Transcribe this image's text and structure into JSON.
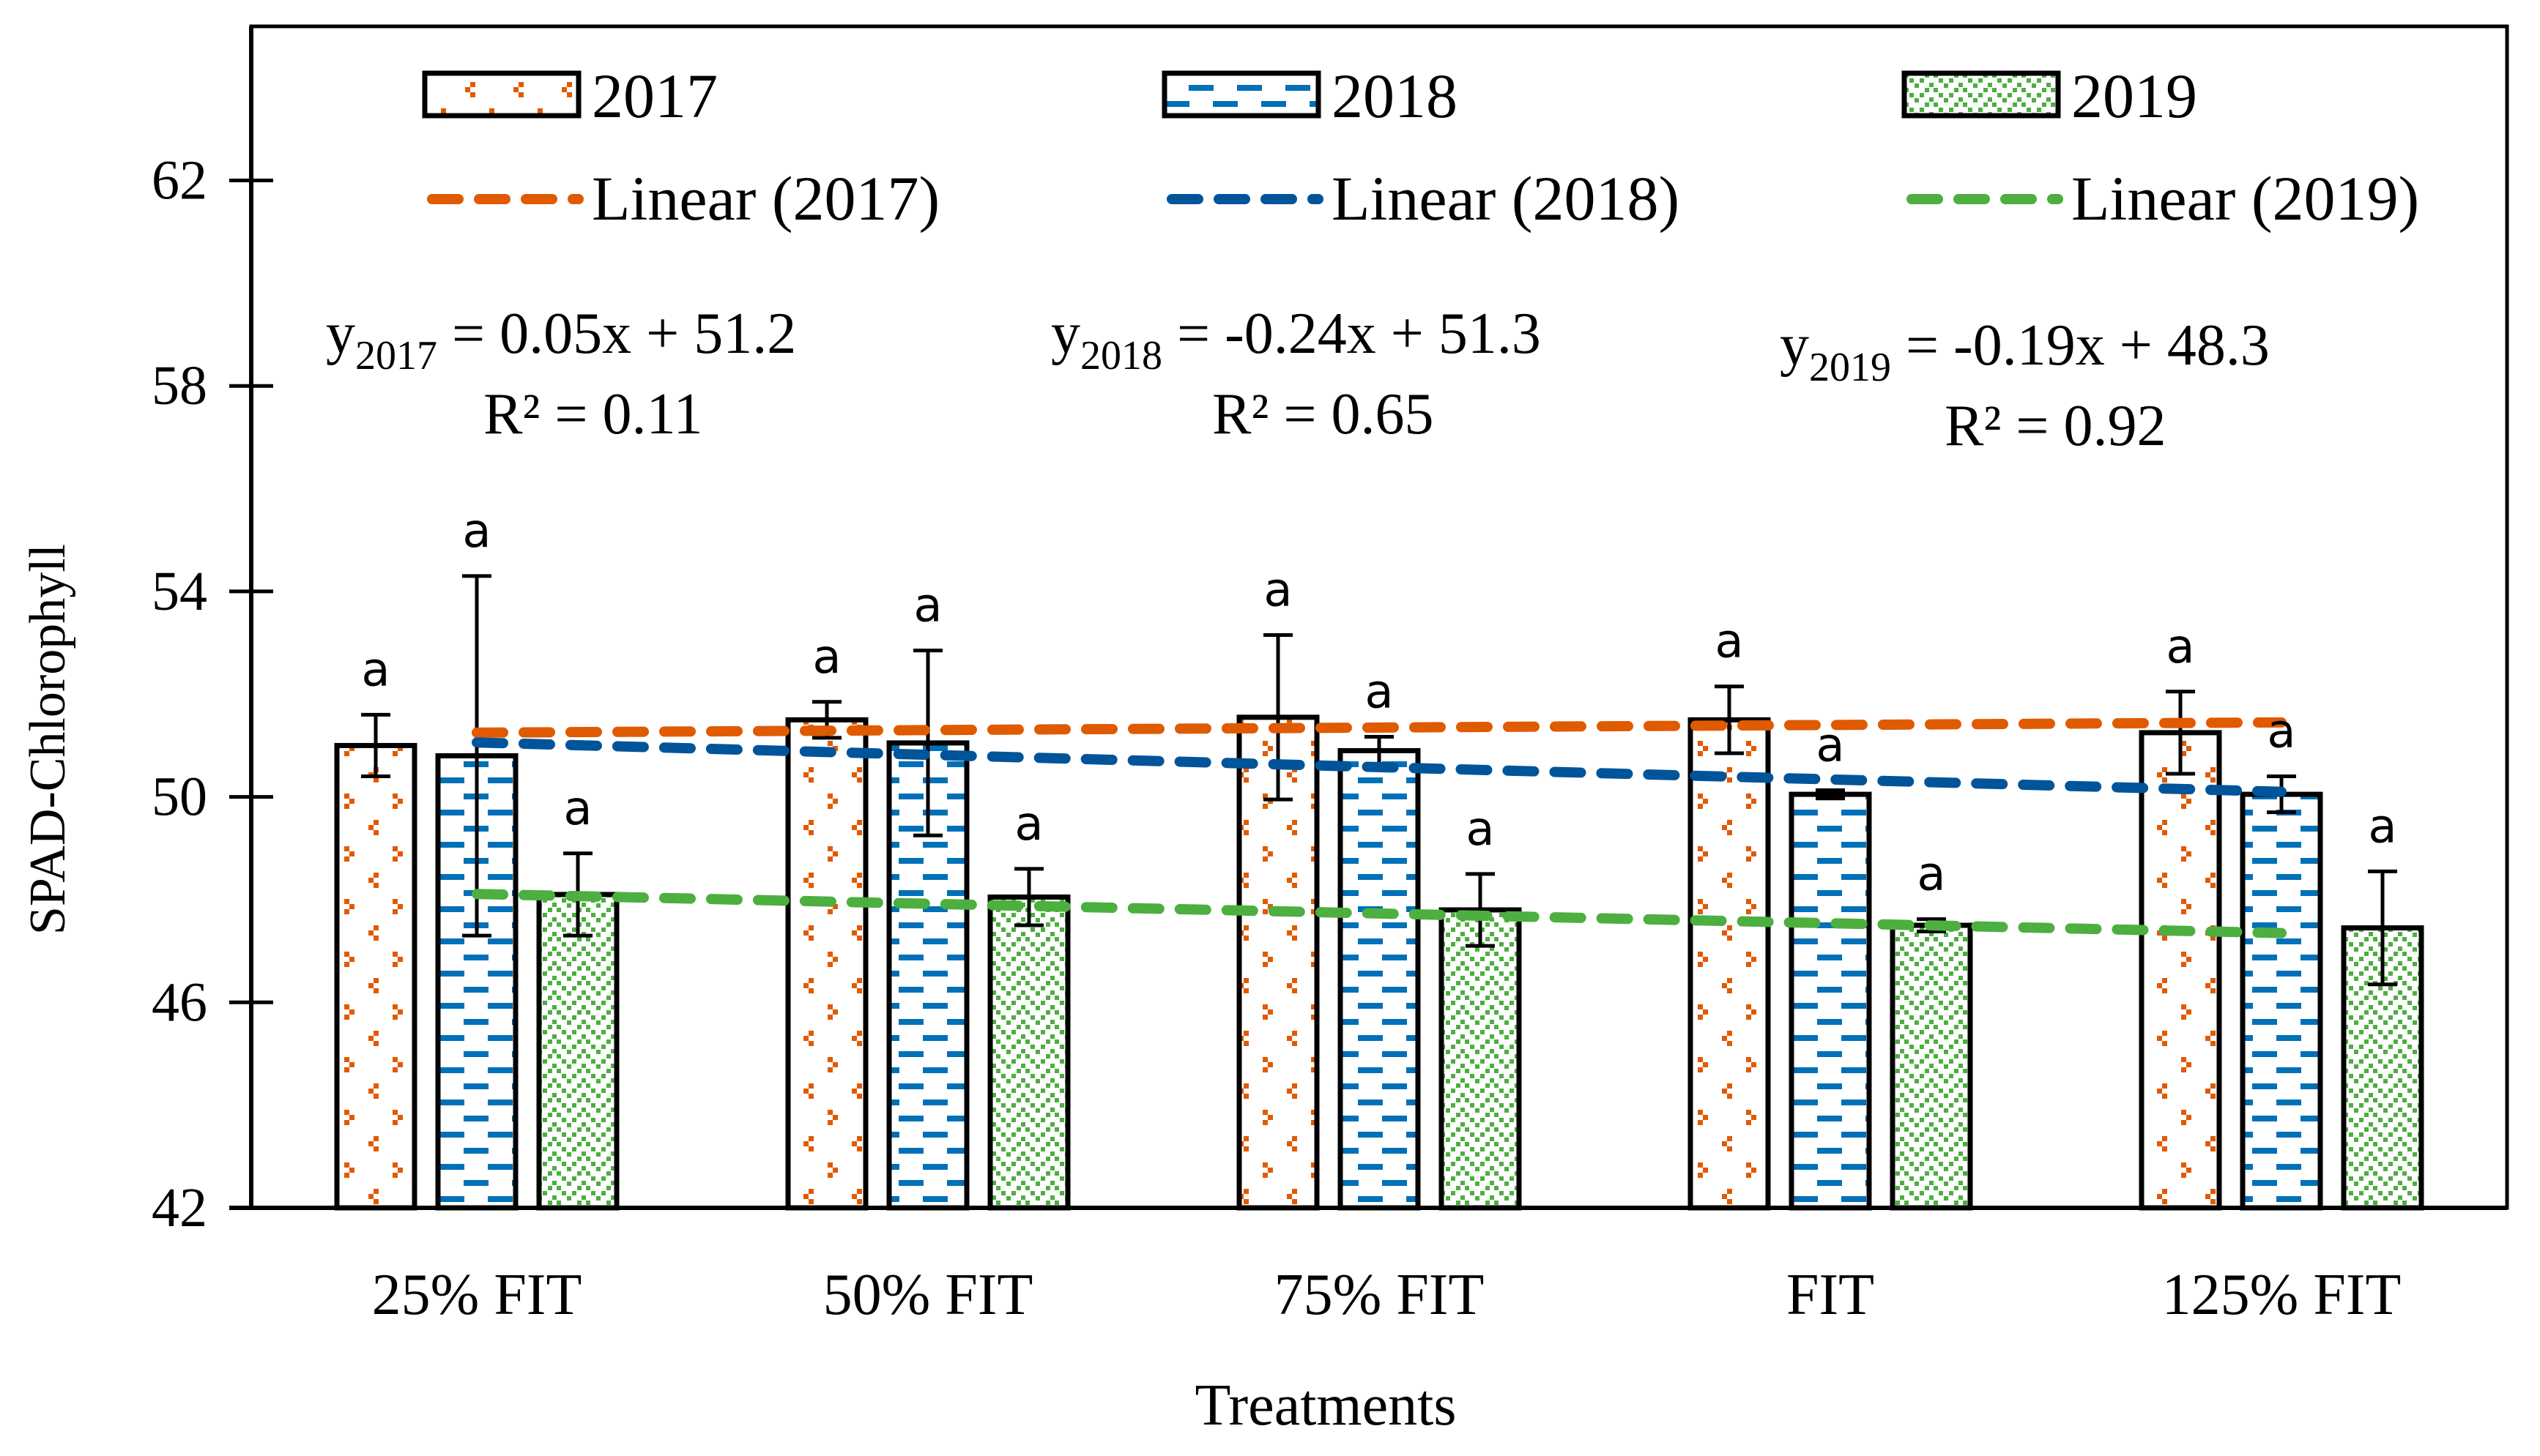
{
  "chart_data": {
    "type": "bar",
    "title": "",
    "xlabel": "Treatments",
    "ylabel": "SPAD-Chlorophyll",
    "ylim": [
      42,
      65
    ],
    "yticks": [
      42,
      46,
      50,
      54,
      58,
      62
    ],
    "grid": false,
    "legend_position": "top",
    "categories": [
      "25% FIT",
      "50% FIT",
      "75% FIT",
      "FIT",
      "125% FIT"
    ],
    "series": [
      {
        "name": "2017",
        "color": "#E05A00",
        "pattern": "small-confetti",
        "values": [
          51.0,
          51.5,
          51.55,
          51.5,
          51.25
        ],
        "errors": [
          0.6,
          0.35,
          1.6,
          0.65,
          0.8
        ],
        "letters": [
          "a",
          "a",
          "a",
          "a",
          "a"
        ]
      },
      {
        "name": "2018",
        "color": "#0070B8",
        "pattern": "dashed-horizontal",
        "values": [
          50.8,
          51.05,
          50.9,
          50.05,
          50.05
        ],
        "errors": [
          3.5,
          1.8,
          0.27,
          0.08,
          0.35
        ],
        "letters": [
          "a",
          "a",
          "a",
          "a",
          "a"
        ]
      },
      {
        "name": "2019",
        "color": "#4CAF3F",
        "pattern": "zigzag",
        "values": [
          48.1,
          48.05,
          47.8,
          47.5,
          47.45
        ],
        "errors": [
          0.8,
          0.55,
          0.7,
          0.12,
          1.1
        ],
        "letters": [
          "a",
          "a",
          "a",
          "a",
          "a"
        ]
      }
    ],
    "trendlines": [
      {
        "name": "Linear (2017)",
        "series": "2017",
        "color": "#E05A00",
        "slope": 0.05,
        "intercept": 51.2,
        "r2": 0.11,
        "equation_label": "y",
        "equation_sub": "2017",
        "equation_rest": " = 0.05x + 51.2",
        "r2_label": "R² = 0.11"
      },
      {
        "name": "Linear (2018)",
        "series": "2018",
        "color": "#00549A",
        "slope": -0.24,
        "intercept": 51.3,
        "r2": 0.65,
        "equation_label": "y",
        "equation_sub": "2018",
        "equation_rest": " = -0.24x + 51.3",
        "r2_label": "R² = 0.65"
      },
      {
        "name": "Linear (2019)",
        "series": "2019",
        "color": "#4CAF3F",
        "slope": -0.19,
        "intercept": 48.3,
        "r2": 0.92,
        "equation_label": "y",
        "equation_sub": "2019",
        "equation_rest": " = -0.19x + 48.3",
        "r2_label": "R² = 0.92"
      }
    ],
    "legend": {
      "bars": [
        "2017",
        "2018",
        "2019"
      ],
      "lines": [
        "Linear (2017)",
        "Linear (2018)",
        "Linear (2019)"
      ]
    }
  }
}
